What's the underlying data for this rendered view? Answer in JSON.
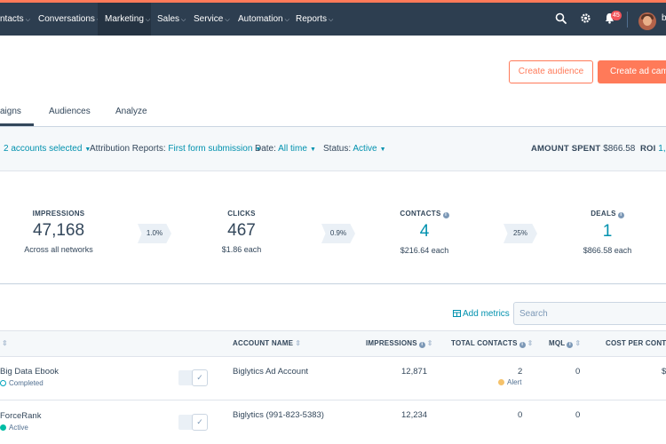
{
  "nav": {
    "items": [
      {
        "label": "ntacts"
      },
      {
        "label": "Conversations"
      },
      {
        "label": "Marketing"
      },
      {
        "label": "Sales"
      },
      {
        "label": "Service"
      },
      {
        "label": "Automation"
      },
      {
        "label": "Reports"
      }
    ],
    "active": "Marketing",
    "notification_count": "45",
    "avatar_initial": "b"
  },
  "header": {
    "create_audience_label": "Create audience",
    "create_ad_label": "Create ad camp",
    "tabs": [
      {
        "label": "aigns",
        "active": true
      },
      {
        "label": "Audiences",
        "active": false
      },
      {
        "label": "Analyze",
        "active": false
      }
    ]
  },
  "filters": {
    "accounts": "2 accounts selected",
    "attribution_label": "Attribution Reports:",
    "attribution_value": "First form submission",
    "date_label": "Date:",
    "date_value": "All time",
    "status_label": "Status:",
    "status_value": "Active",
    "amount_spent_label": "AMOUNT SPENT",
    "amount_spent_value": "$866.58",
    "roi_label": "ROI",
    "roi_value": "1,"
  },
  "funnel": {
    "impressions": {
      "label": "IMPRESSIONS",
      "value": "47,168",
      "sub": "Across all networks"
    },
    "clicks": {
      "label": "CLICKS",
      "value": "467",
      "sub": "$1.86 each"
    },
    "contacts": {
      "label": "CONTACTS",
      "value": "4",
      "sub": "$216.64 each"
    },
    "deals": {
      "label": "DEALS",
      "value": "1",
      "sub": "$866.58 each"
    },
    "rates": [
      "1.0%",
      "0.9%",
      "25%"
    ]
  },
  "table": {
    "add_metrics_label": "Add metrics",
    "search_placeholder": "Search",
    "headers": {
      "account_name": "ACCOUNT NAME",
      "impressions": "IMPRESSIONS",
      "total_contacts": "TOTAL CONTACTS",
      "mql": "MQL",
      "cost_per_contact": "COST PER CONTACT"
    },
    "rows": [
      {
        "name": "Big Data Ebook",
        "status": "Completed",
        "account": "Biglytics Ad Account",
        "impressions": "12,871",
        "contacts": "2",
        "contacts_note": "Alert",
        "mql": "0",
        "cost": "$"
      },
      {
        "name": "ForceRank",
        "status": "Active",
        "account": "Biglytics (991-823-5383)",
        "impressions": "12,234",
        "contacts": "0",
        "mql": "0",
        "cost": ""
      }
    ]
  },
  "colors": {
    "nav_bg": "#2d3e50",
    "accent": "#ff7a59",
    "link": "#0091ae",
    "status_completed": "#00a4bd",
    "status_active": "#00bda5",
    "alert": "#f5c26b"
  }
}
